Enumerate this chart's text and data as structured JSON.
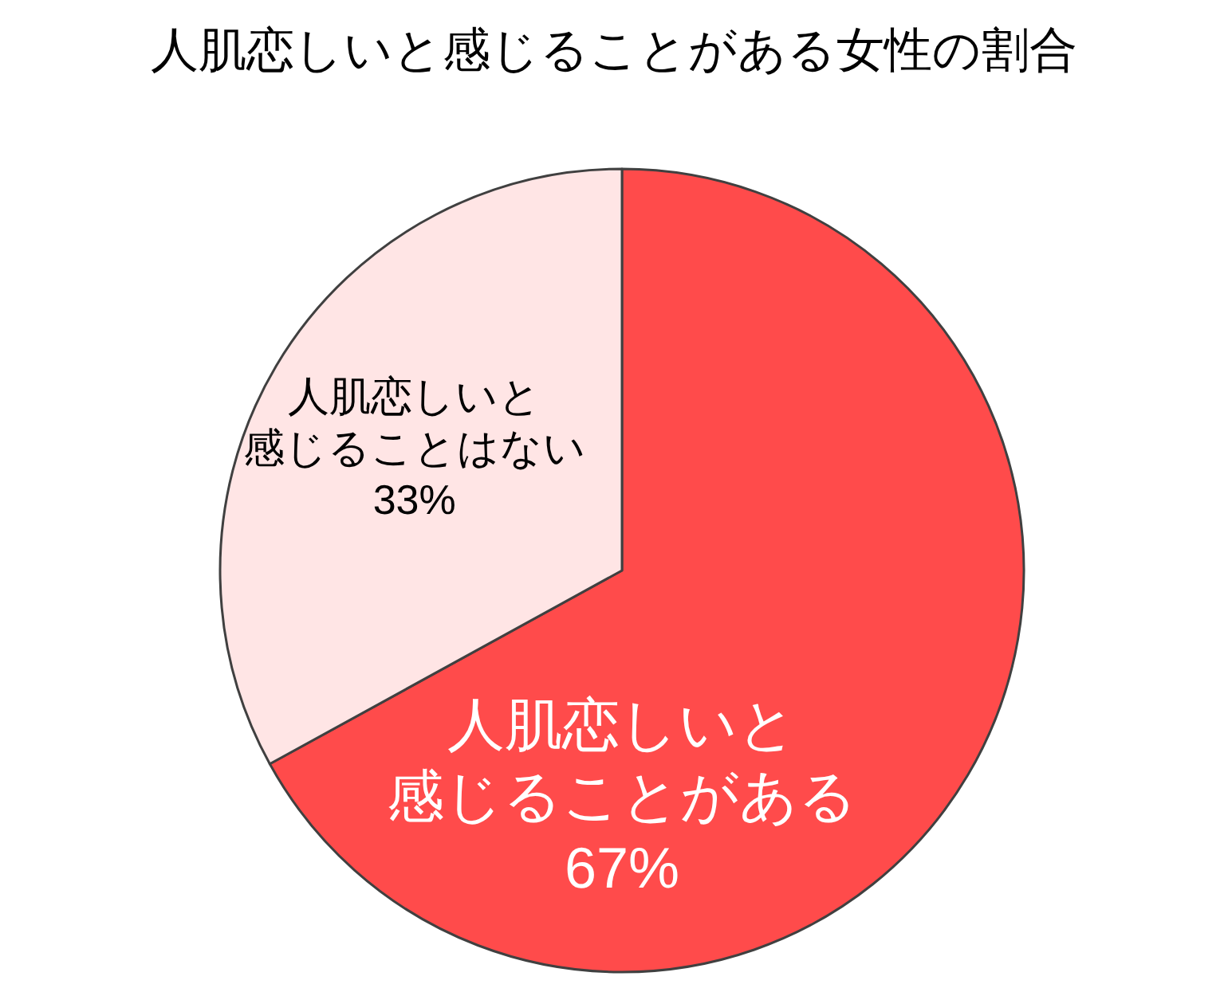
{
  "chart_data": {
    "type": "pie",
    "title": "人肌恋しいと感じることがある女性の割合",
    "categories": [
      "人肌恋しいと感じることがある",
      "人肌恋しいと感じることはない"
    ],
    "values": [
      67,
      33
    ],
    "colors": [
      "#ff4b4b",
      "#ffe5e5"
    ],
    "value_labels": [
      "67%",
      "33%"
    ]
  }
}
